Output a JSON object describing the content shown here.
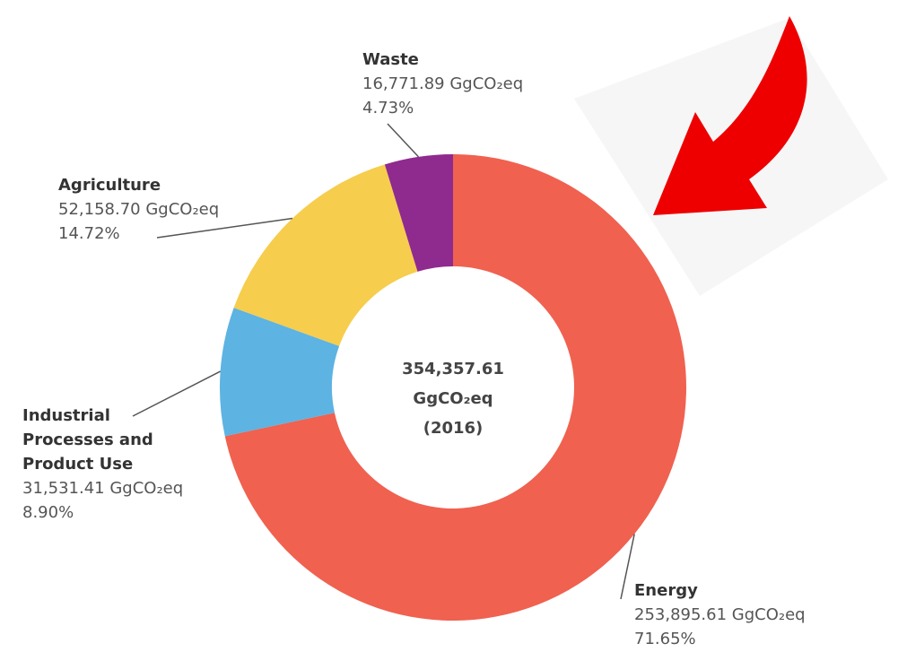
{
  "chart_data": {
    "type": "pie",
    "donut": true,
    "categories": [
      "Energy",
      "Industrial Processes and Product Use",
      "Agriculture",
      "Waste"
    ],
    "values": [
      71.65,
      8.9,
      14.72,
      4.73
    ],
    "value_labels": [
      "71.65%",
      "8.90%",
      "14.72%",
      "4.73%"
    ],
    "amount_labels": [
      "253,895.61 GgCO₂eq",
      "31,531.41 GgCO₂eq",
      "52,158.70 GgCO₂eq",
      "16,771.89 GgCO₂eq"
    ],
    "colors": [
      "#f06150",
      "#5db3e2",
      "#f6cd4c",
      "#8f2a8f"
    ],
    "center_text": [
      "354,357.61",
      "GgCO₂eq",
      "(2016)"
    ]
  }
}
